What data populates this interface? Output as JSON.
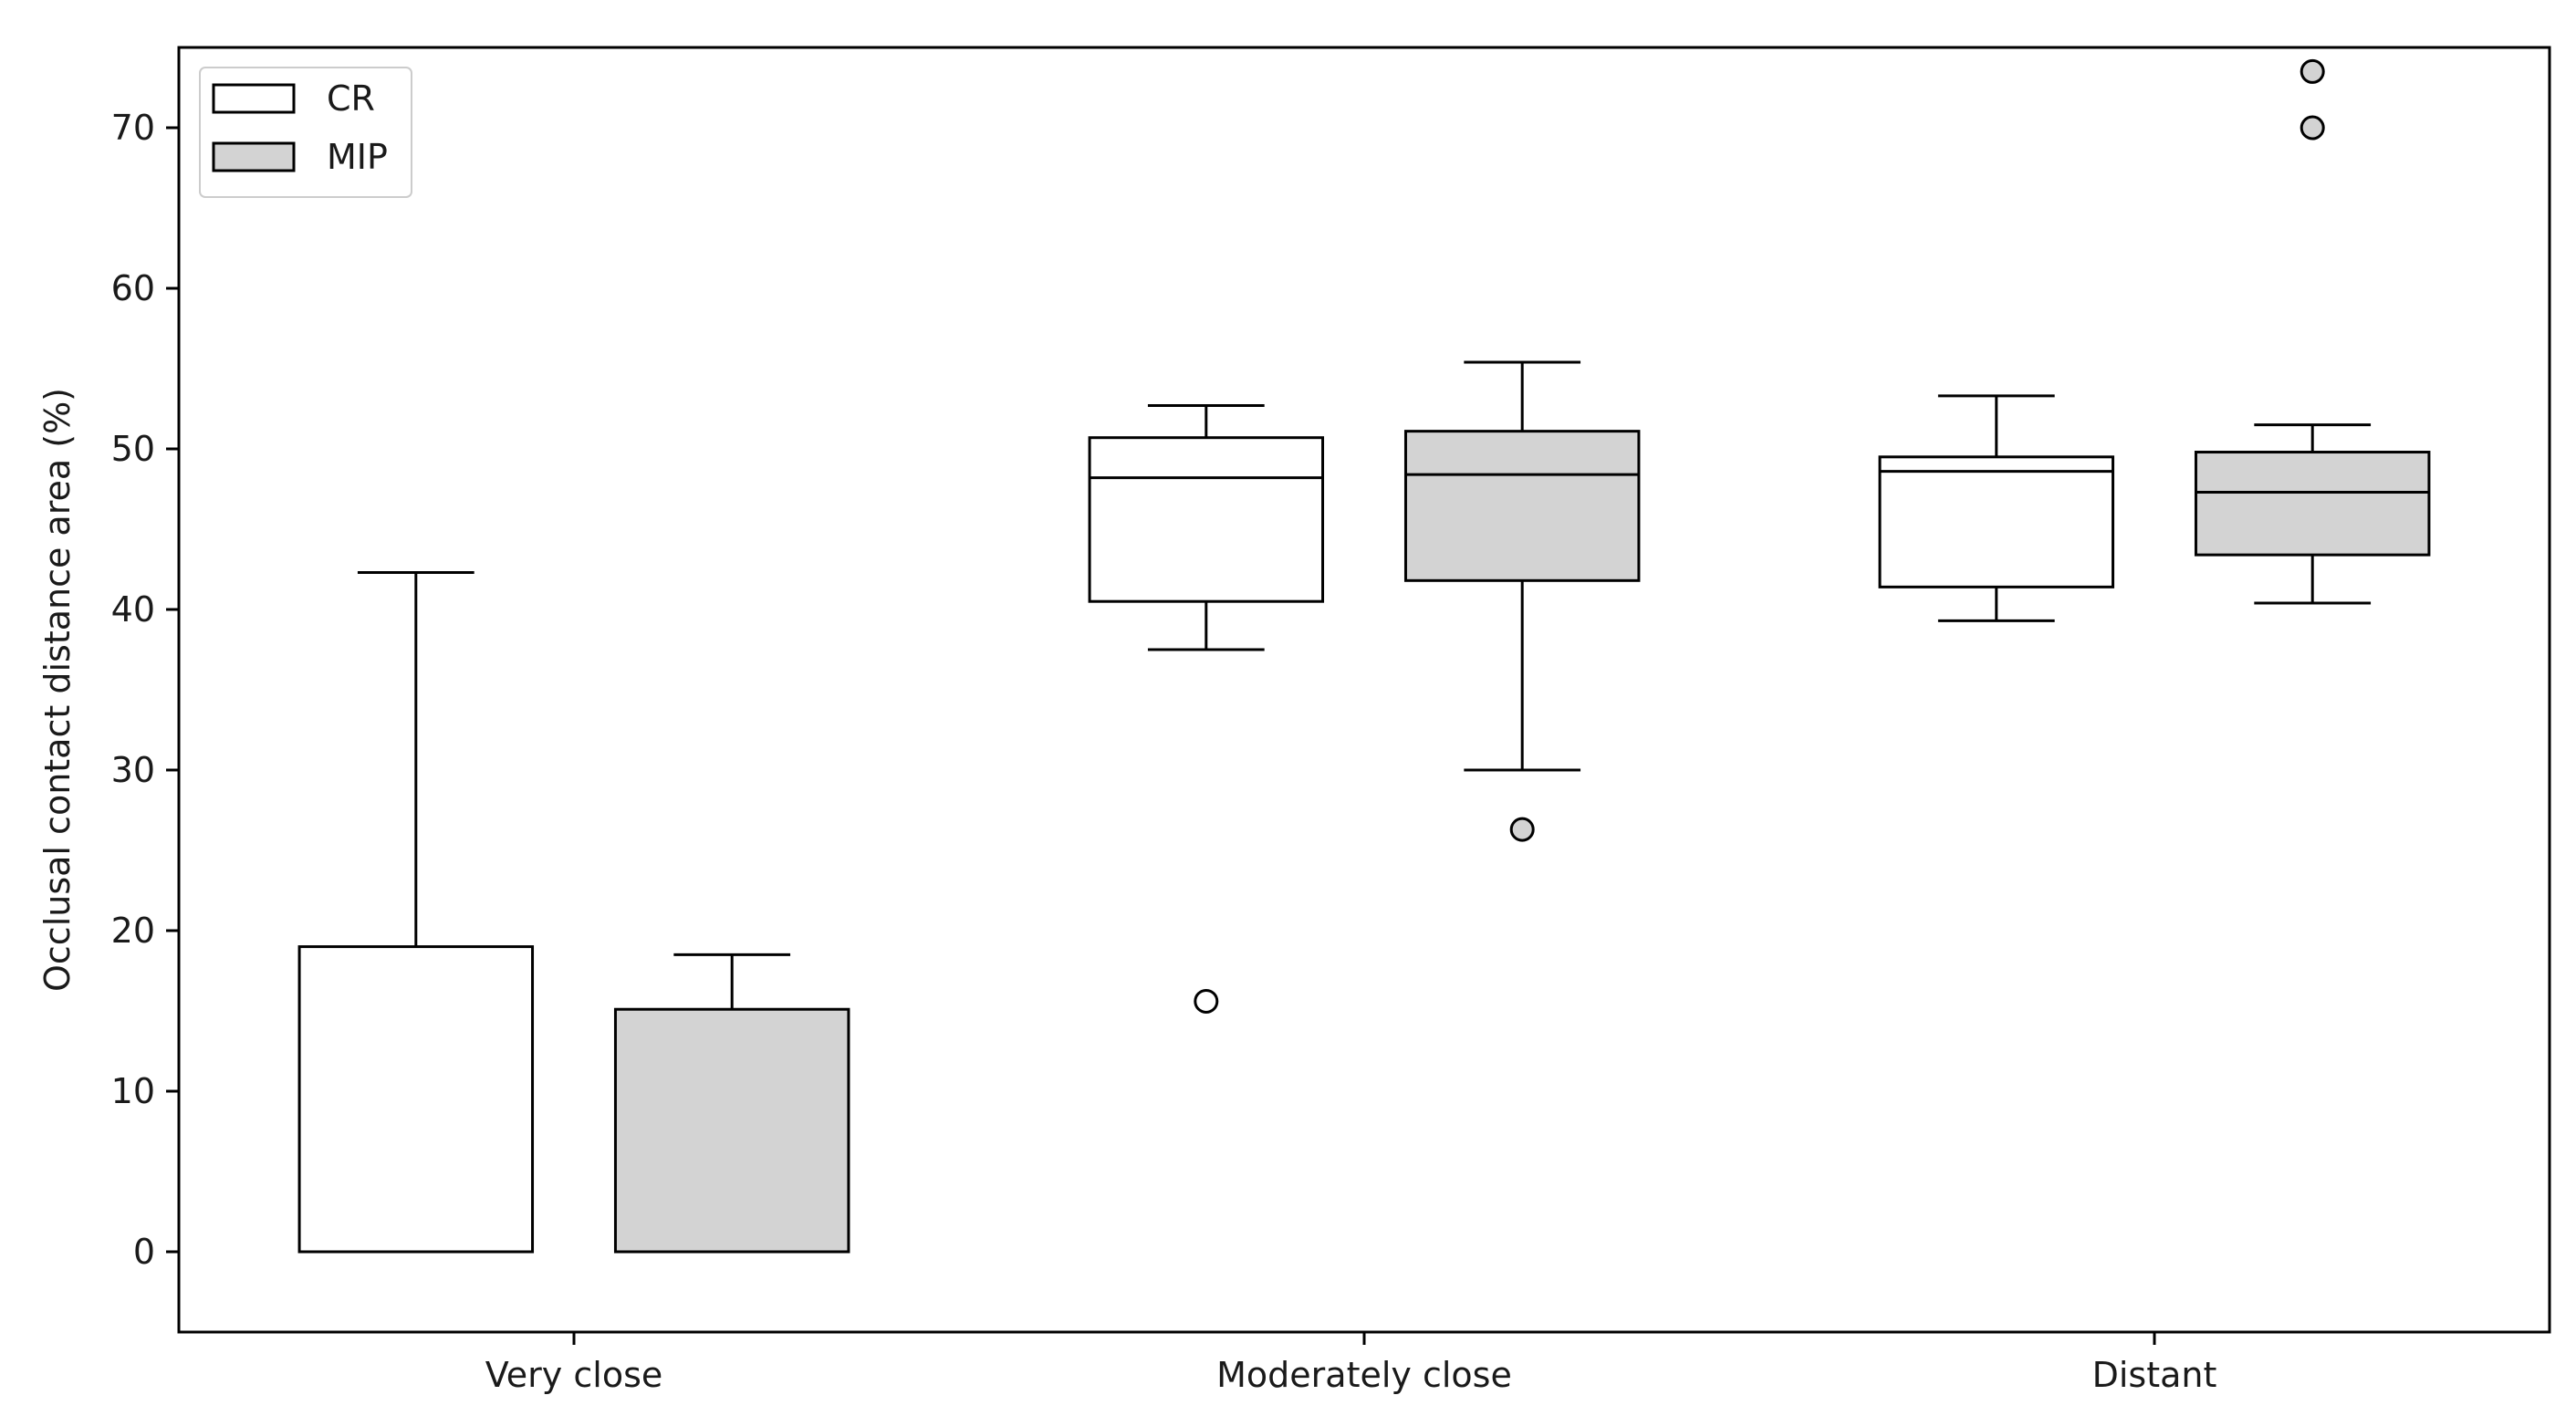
{
  "chart_data": {
    "type": "box",
    "title": "",
    "xlabel": "",
    "ylabel": "Occlusal contact distance area (%)",
    "ylim": [
      -5,
      75
    ],
    "yticks": [
      0,
      10,
      20,
      30,
      40,
      50,
      60,
      70
    ],
    "categories": [
      "Very close",
      "Moderately close",
      "Distant"
    ],
    "grid": false,
    "legend_position": "top-left",
    "series": [
      {
        "name": "CR",
        "color": "#ffffff",
        "boxes": [
          {
            "whislo": 0,
            "q1": 0,
            "med": 0,
            "q3": 19,
            "whishi": 42.3,
            "fliers": []
          },
          {
            "whislo": 37.5,
            "q1": 40.5,
            "med": 48.2,
            "q3": 50.7,
            "whishi": 52.7,
            "fliers": [
              15.6
            ]
          },
          {
            "whislo": 39.3,
            "q1": 41.4,
            "med": 48.6,
            "q3": 49.5,
            "whishi": 53.3,
            "fliers": []
          }
        ]
      },
      {
        "name": "MIP",
        "color": "#d3d3d3",
        "boxes": [
          {
            "whislo": 0,
            "q1": 0,
            "med": 0,
            "q3": 15.1,
            "whishi": 18.5,
            "fliers": []
          },
          {
            "whislo": 30,
            "q1": 41.8,
            "med": 48.4,
            "q3": 51.1,
            "whishi": 55.4,
            "fliers": [
              26.3
            ]
          },
          {
            "whislo": 40.4,
            "q1": 43.4,
            "med": 47.3,
            "q3": 49.8,
            "whishi": 51.5,
            "fliers": [
              70,
              73.5
            ]
          }
        ]
      }
    ]
  }
}
